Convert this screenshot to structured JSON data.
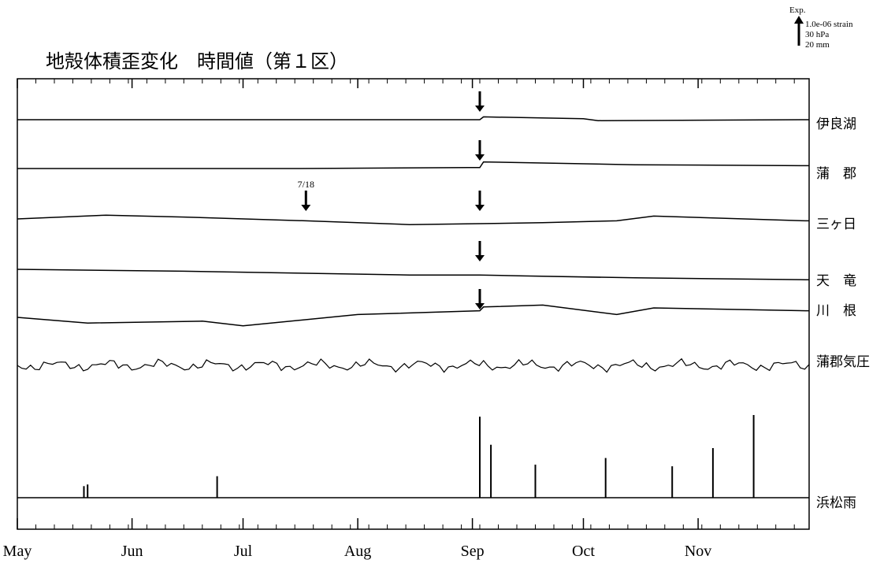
{
  "chart_data": {
    "type": "line",
    "title": "地殻体積歪変化　時間値（第１区）",
    "scale_note": {
      "label": "Exp.",
      "lines": [
        "1.0e-06 strain",
        "30 hPa",
        "20 mm"
      ]
    },
    "x_ticks": [
      "May",
      "Jun",
      "Jul",
      "Aug",
      "Sep",
      "Oct",
      "Nov"
    ],
    "series": [
      {
        "name": "伊良湖",
        "kind": "strain",
        "arrows": [
          "Sep-03"
        ],
        "x": [
          "May-01",
          "Sep-03",
          "Sep-04",
          "Oct-01",
          "Oct-05",
          "Nov-30"
        ],
        "y": [
          0,
          0,
          0.3,
          0.1,
          -0.1,
          0
        ]
      },
      {
        "name": "蒲　郡",
        "kind": "strain",
        "arrows": [
          "Sep-03"
        ],
        "x": [
          "May-01",
          "Jul-15",
          "Aug-31",
          "Sep-03",
          "Sep-04",
          "Oct-15",
          "Nov-30"
        ],
        "y": [
          0,
          0,
          0.1,
          0.1,
          0.7,
          0.4,
          0.3
        ]
      },
      {
        "name": "三ヶ日",
        "kind": "strain",
        "arrows": [
          "Jul-18",
          "Sep-03"
        ],
        "arrow_labels": {
          "Jul-18": "7/18"
        },
        "x": [
          "May-01",
          "May-25",
          "Jun-15",
          "Jul-18",
          "Aug-15",
          "Sep-03",
          "Sep-20",
          "Oct-10",
          "Oct-20",
          "Nov-30"
        ],
        "y": [
          0,
          0.4,
          0.2,
          -0.2,
          -0.6,
          -0.5,
          -0.4,
          -0.2,
          0.3,
          -0.2
        ]
      },
      {
        "name": "天　竜",
        "kind": "strain",
        "arrows": [
          "Sep-03"
        ],
        "x": [
          "May-01",
          "Jun-15",
          "Jul-15",
          "Aug-15",
          "Sep-03",
          "Sep-15",
          "Oct-15",
          "Nov-30"
        ],
        "y": [
          0,
          -0.2,
          -0.4,
          -0.6,
          -0.6,
          -0.7,
          -0.9,
          -1.1
        ]
      },
      {
        "name": "川　根",
        "kind": "strain",
        "arrows": [
          "Sep-03"
        ],
        "x": [
          "May-01",
          "May-20",
          "Jun-20",
          "Jul-01",
          "Aug-01",
          "Sep-03",
          "Sep-04",
          "Sep-20",
          "Oct-10",
          "Oct-20",
          "Nov-30"
        ],
        "y": [
          0,
          -0.6,
          -0.4,
          -0.9,
          0.3,
          0.7,
          1.1,
          1.3,
          0.3,
          1.0,
          0.7
        ]
      },
      {
        "name": "蒲郡気圧",
        "kind": "pressure"
      },
      {
        "name": "浜松雨",
        "kind": "rain",
        "x": [
          "May-19",
          "May-20",
          "Jun-24",
          "Sep-03",
          "Sep-06",
          "Sep-18",
          "Oct-07",
          "Oct-25",
          "Nov-05",
          "Nov-16"
        ],
        "y": [
          14,
          16,
          26,
          98,
          64,
          40,
          48,
          38,
          60,
          100
        ]
      }
    ]
  }
}
